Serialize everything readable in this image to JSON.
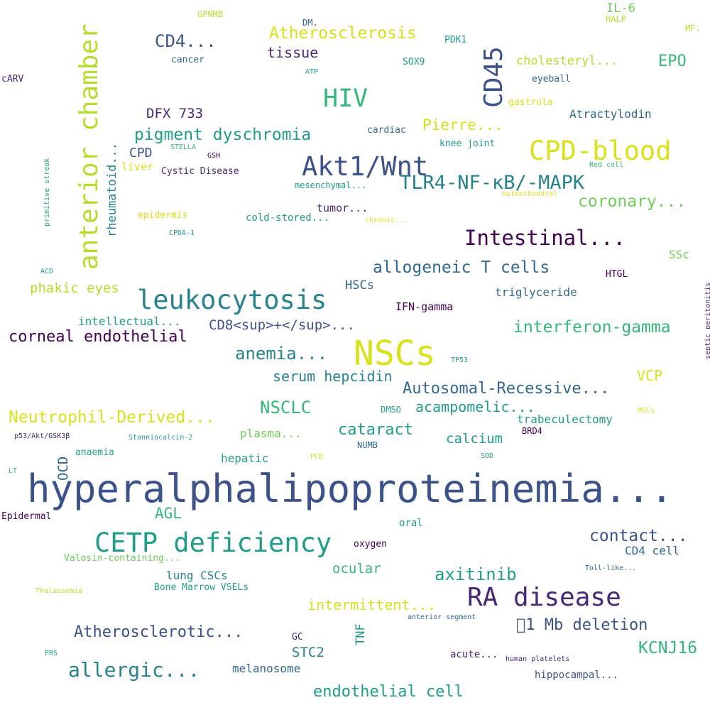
{
  "words": [
    "hyperalphalipoproteinemia...",
    "CETP deficiency",
    "RA disease",
    "NSCs",
    "leukocytosis",
    "anterior chamber",
    "CPD-blood",
    "Akt1/Wnt",
    "HIV",
    "CD45",
    "TLR4-NF-κB/-MAPK",
    "Intestinal...",
    "allergic...",
    "pigment dyschromia",
    "Atherosclerosis",
    "coronary...",
    "interferon-gamma",
    "allogeneic T cells",
    "Neutrophil-Derived...",
    "Autosomal-Recessive...",
    "corneal endothelial",
    "anemia...",
    "Atherosclerotic...",
    "axitinib",
    "endothelial cell",
    "contact...",
    "􏿽1 Mb deletion",
    "NSCLC",
    "KCNJ16",
    "CD4...",
    "cataract",
    "serum hepcidin",
    "acampomelic...",
    "EPO",
    "CD8<sup>+</sup>...",
    "intermittent...",
    "phakic eyes",
    "tissue",
    "DFX 733",
    "Pierre...",
    "ocular",
    "calcium",
    "VCP",
    "AGL",
    "rheumatoid...",
    "cholesteryl...",
    "STC2",
    "HSCs",
    "CPD",
    "OCD",
    "plasma...",
    "intellectual...",
    "trabeculectomy",
    "melanosome",
    "TNF",
    "Atractylodin",
    "triglyceride",
    "IL-6",
    "lung CSCs",
    "hepatic",
    "tumor...",
    "CD4 cell",
    "hippocampal...",
    "IFN-gamma",
    "liver",
    "acute...",
    "Cystic Disease",
    "Valosin-containing...",
    "cold-stored...",
    "epidermis",
    "SSc",
    "Bone Marrow VSELs",
    "oral",
    "gastrula",
    "cancer",
    "eyeball",
    "knee joint",
    "cardiac",
    "mesenchymal...",
    "oxygen",
    "Epidermal",
    "anaemia",
    "PDK1",
    "HTGL",
    "SOX9",
    "cARV",
    "DMSO",
    "GC",
    "NUMB",
    "BRD4",
    "GPNMB",
    "MF.",
    "HALP",
    "DM.",
    "primitive streak",
    "septic peritonitis",
    "Stanniocalcin-2",
    "p53/Akt/GSK3β",
    "TP53",
    "SOD",
    "PCD",
    "ATP",
    "STELLA",
    "GSH",
    "Red cell",
    "CPDA-1",
    "osteochondral",
    "chronic...",
    "Toll-like...",
    "MSCs",
    "anterior segment",
    "human platelets",
    "Thalassemia",
    "ACD",
    "PRS",
    "LT"
  ],
  "colors": {
    "dark_purple": "#440154",
    "indigo": "#482878",
    "slate_blue": "#3b528b",
    "steel_blue": "#31688e",
    "teal_blue": "#26828e",
    "teal": "#1f9e89",
    "green_teal": "#35b779",
    "green": "#6ece58",
    "lime": "#b5de2b",
    "yellow": "#d8e219"
  }
}
